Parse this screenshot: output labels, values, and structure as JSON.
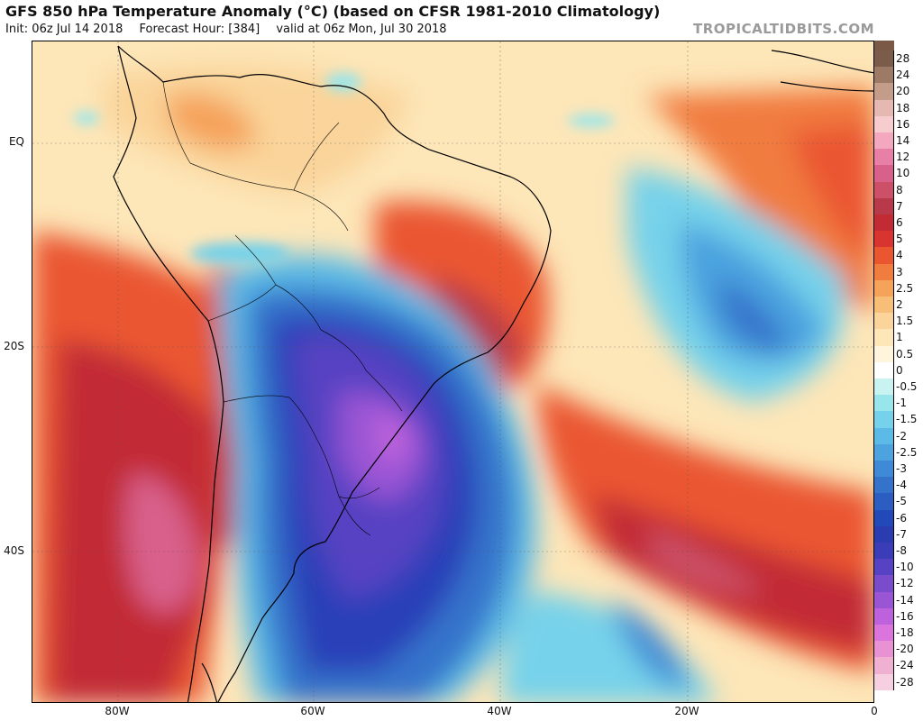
{
  "header": {
    "title": "GFS 850 hPa Temperature Anomaly (°C) (based on CFSR 1981-2010 Climatology)",
    "init": "Init: 06z Jul 14 2018",
    "forecast_hour": "Forecast Hour: [384]",
    "valid": "valid at 06z Mon, Jul 30 2018",
    "brand": "TROPICALTIDBITS.COM"
  },
  "axes": {
    "y_labels": [
      "EQ",
      "20S",
      "40S"
    ],
    "x_labels": [
      "80W",
      "60W",
      "40W",
      "20W",
      "0"
    ]
  },
  "colorbar": {
    "labels": [
      "28",
      "24",
      "20",
      "18",
      "16",
      "14",
      "12",
      "10",
      "8",
      "7",
      "6",
      "5",
      "4",
      "3",
      "2.5",
      "2",
      "1.5",
      "1",
      "0.5",
      "0",
      "-0.5",
      "-1",
      "-1.5",
      "-2",
      "-2.5",
      "-3",
      "-4",
      "-5",
      "-6",
      "-7",
      "-8",
      "-10",
      "-12",
      "-14",
      "-16",
      "-18",
      "-20",
      "-24",
      "-28"
    ],
    "colors": [
      "#7b5c4a",
      "#9d7a66",
      "#c39c8a",
      "#e6b8b2",
      "#f6cccf",
      "#f3a8bf",
      "#e87fa6",
      "#d8618b",
      "#cc5168",
      "#b83a4a",
      "#c22a34",
      "#d93530",
      "#ea5630",
      "#f17c40",
      "#f5a25a",
      "#f7be78",
      "#fad49a",
      "#fde6b8",
      "#fff5dc",
      "#ffffff",
      "#c9f3f0",
      "#98e6ec",
      "#76d2ea",
      "#5cbbe6",
      "#4ca3df",
      "#3f8ad6",
      "#3573cb",
      "#2c5ec2",
      "#2249b8",
      "#2a3cb0",
      "#3a3cb8",
      "#5642c2",
      "#7a4ccc",
      "#9a55d4",
      "#bd62dc",
      "#dc74de",
      "#e892d4",
      "#f0b0d2",
      "#f6cfe0"
    ]
  },
  "map": {
    "region": "South America and South Atlantic",
    "colors": {
      "land_line": "#000000",
      "warm_strong": "#c22a34",
      "warm": "#ea5630",
      "warm_light": "#f5a25a",
      "neutral_warm": "#fde6b8",
      "cold_light": "#76d2ea",
      "cold": "#3573cb",
      "cold_strong": "#2c3fb8",
      "cold_max": "#9a55d4"
    }
  }
}
